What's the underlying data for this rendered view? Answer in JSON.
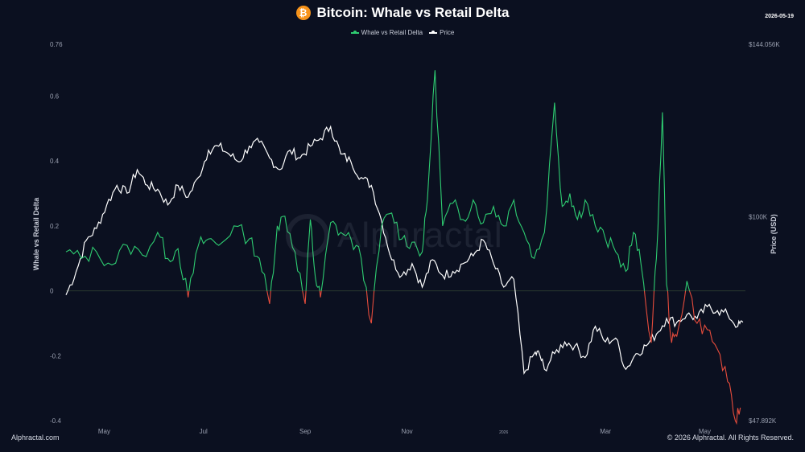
{
  "header": {
    "title": "Bitcoin: Whale vs Retail Delta",
    "date": "2026-05-19",
    "icon": "bitcoin-icon",
    "icon_glyph": "₿"
  },
  "legend": [
    {
      "label": "Whale vs Retail Delta",
      "color": "#2ecc71"
    },
    {
      "label": "Price",
      "color": "#ffffff"
    }
  ],
  "footer": {
    "left": "Alphractal.com",
    "right": "© 2026 Alphractal. All Rights Reserved."
  },
  "watermark": {
    "text": "Alphractal"
  },
  "chart_data": {
    "type": "line",
    "title": "Bitcoin: Whale vs Retail Delta",
    "x_ticks": [
      {
        "label": "May",
        "month_index": 0.75
      },
      {
        "label": "Jul",
        "month_index": 2.7
      },
      {
        "label": "Sep",
        "month_index": 4.7
      },
      {
        "label": "Nov",
        "month_index": 6.7
      },
      {
        "label": "2026",
        "month_index": 8.6
      },
      {
        "label": "Mar",
        "month_index": 10.6
      },
      {
        "label": "May",
        "month_index": 12.55
      }
    ],
    "x_range_months": [
      0,
      13.35
    ],
    "y_left": {
      "label": "Whale vs Retail Delta",
      "range": [
        -0.4,
        0.76
      ],
      "ticks": [
        {
          "value": 0.76,
          "label": "0.76"
        },
        {
          "value": 0.6,
          "label": "0.6"
        },
        {
          "value": 0.4,
          "label": "0.4"
        },
        {
          "value": 0.2,
          "label": "0.2"
        },
        {
          "value": 0,
          "label": "0"
        },
        {
          "value": -0.2,
          "label": "-0.2"
        },
        {
          "value": -0.4,
          "label": "-0.4"
        }
      ]
    },
    "y_right": {
      "label": "Price (USD)",
      "range": [
        47892,
        144056
      ],
      "ticks": [
        {
          "value": 144056,
          "label": "$144.056K"
        },
        {
          "value": 100000,
          "label": "$100K"
        },
        {
          "value": 47892,
          "label": "$47.892K"
        }
      ]
    },
    "colors": {
      "positive": "#2ecc71",
      "negative": "#e74c3c",
      "price": "#ffffff",
      "zero_line": "#2b3a2f"
    },
    "series": [
      {
        "name": "Whale vs Retail Delta",
        "axis": "left",
        "x": [
          0.0,
          0.3,
          0.6,
          0.9,
          1.2,
          1.5,
          1.8,
          2.0,
          2.2,
          2.4,
          2.6,
          2.8,
          3.0,
          3.3,
          3.6,
          3.8,
          4.0,
          4.15,
          4.3,
          4.5,
          4.7,
          4.8,
          4.9,
          5.0,
          5.2,
          5.4,
          5.6,
          5.8,
          6.0,
          6.2,
          6.4,
          6.6,
          6.8,
          7.0,
          7.1,
          7.25,
          7.4,
          7.6,
          7.8,
          8.0,
          8.2,
          8.4,
          8.6,
          8.8,
          9.0,
          9.2,
          9.4,
          9.6,
          9.75,
          9.9,
          10.05,
          10.2,
          10.4,
          10.6,
          10.8,
          11.0,
          11.15,
          11.3,
          11.5,
          11.6,
          11.72,
          11.8,
          11.9,
          12.0,
          12.2,
          12.4,
          12.6,
          12.8,
          13.0,
          13.15,
          13.25
        ],
        "values": [
          0.12,
          0.1,
          0.12,
          0.08,
          0.14,
          0.11,
          0.18,
          0.1,
          0.13,
          -0.02,
          0.14,
          0.16,
          0.14,
          0.2,
          0.16,
          0.1,
          -0.04,
          0.2,
          0.23,
          0.12,
          -0.04,
          0.22,
          0.04,
          -0.02,
          0.21,
          0.18,
          0.16,
          0.1,
          -0.1,
          0.2,
          0.24,
          0.16,
          0.15,
          0.12,
          0.28,
          0.68,
          0.2,
          0.27,
          0.22,
          0.28,
          0.21,
          0.26,
          0.2,
          0.28,
          0.18,
          0.1,
          0.18,
          0.58,
          0.26,
          0.3,
          0.22,
          0.28,
          0.2,
          0.16,
          0.12,
          0.06,
          0.18,
          0.08,
          -0.16,
          0.1,
          0.55,
          0.02,
          -0.16,
          -0.14,
          0.03,
          -0.1,
          -0.12,
          -0.18,
          -0.28,
          -0.4,
          -0.36
        ]
      },
      {
        "name": "Price",
        "axis": "right",
        "x": [
          0.0,
          0.2,
          0.4,
          0.6,
          0.8,
          1.0,
          1.2,
          1.4,
          1.6,
          1.8,
          2.0,
          2.2,
          2.4,
          2.6,
          2.8,
          3.0,
          3.2,
          3.4,
          3.6,
          3.8,
          4.0,
          4.2,
          4.4,
          4.6,
          4.8,
          5.0,
          5.2,
          5.4,
          5.6,
          5.8,
          6.0,
          6.2,
          6.4,
          6.6,
          6.8,
          7.0,
          7.2,
          7.4,
          7.6,
          7.8,
          8.0,
          8.2,
          8.4,
          8.6,
          8.8,
          9.0,
          9.2,
          9.3,
          9.4,
          9.6,
          9.8,
          10.0,
          10.2,
          10.4,
          10.6,
          10.8,
          11.0,
          11.2,
          11.4,
          11.6,
          11.8,
          12.0,
          12.2,
          12.4,
          12.6,
          12.8,
          13.0,
          13.2,
          13.3
        ],
        "values": [
          80000,
          86000,
          94000,
          97000,
          103000,
          108000,
          106000,
          112000,
          108000,
          107000,
          103000,
          108000,
          105000,
          110000,
          117000,
          118000,
          116000,
          114000,
          118000,
          119000,
          115000,
          112000,
          117000,
          115000,
          118000,
          120000,
          123000,
          116000,
          114000,
          110000,
          108000,
          99000,
          89000,
          85000,
          88000,
          82000,
          89000,
          85000,
          86000,
          88000,
          90000,
          94000,
          88000,
          82000,
          84000,
          60000,
          65000,
          65000,
          61000,
          65000,
          68000,
          67000,
          64000,
          72000,
          68000,
          69000,
          61000,
          65000,
          67000,
          70000,
          74000,
          73000,
          75000,
          74000,
          77000,
          76000,
          75000,
          72000,
          73000
        ]
      }
    ]
  }
}
